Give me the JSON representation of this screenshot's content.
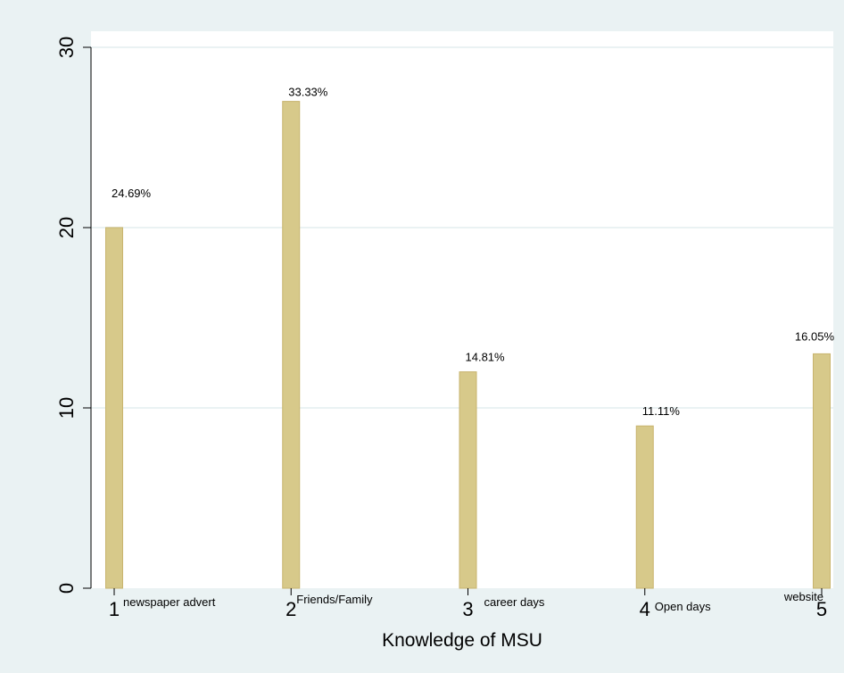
{
  "chart_data": {
    "type": "bar",
    "x": [
      1,
      2,
      3,
      4,
      5
    ],
    "values": [
      20,
      27,
      12,
      9,
      13
    ],
    "bar_labels": [
      "24.69%",
      "33.33%",
      "14.81%",
      "11.11%",
      "16.05%"
    ],
    "category_annotations": [
      "newspaper advert",
      "Friends/Family",
      "career days",
      "Open days",
      "website"
    ],
    "x_tick_labels": [
      "1",
      "2",
      "3",
      "4",
      "5"
    ],
    "y_ticks": [
      0,
      10,
      20,
      30
    ],
    "y_tick_labels": [
      "0",
      "10",
      "20",
      "30"
    ],
    "xlabel": "Knowledge of MSU",
    "ylabel": "",
    "title": "",
    "xlim": [
      1,
      5
    ],
    "ylim": [
      0,
      30
    ],
    "grid": true,
    "colors": {
      "bar_fill": "#d7c98a",
      "bar_stroke": "#c8b46e",
      "outer_background": "#eaf2f3",
      "plot_background": "#ffffff",
      "grid": "#eaf2f3",
      "axis": "#000000"
    }
  }
}
